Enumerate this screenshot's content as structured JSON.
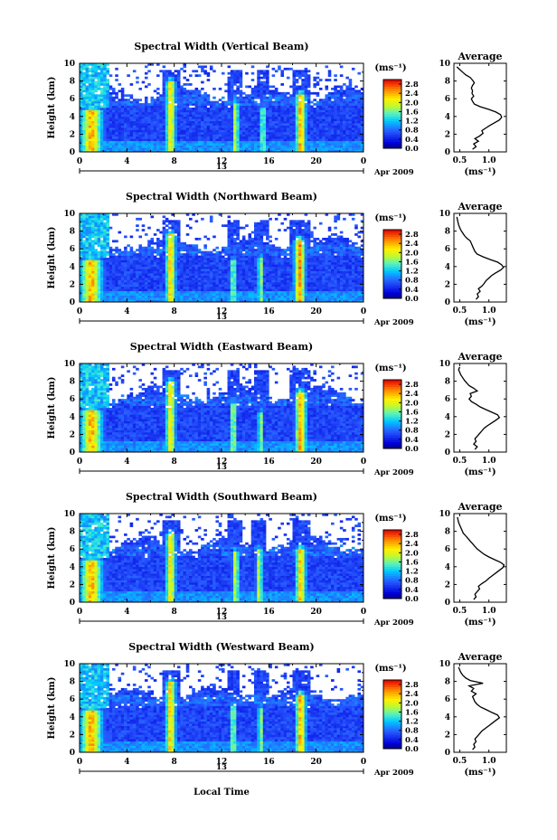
{
  "chart_data": {
    "type": "heatmap",
    "shared": {
      "xlabel": "Local Time",
      "ylabel": "Height (km)",
      "xticks": [
        "0",
        "4",
        "8",
        "12",
        "16",
        "20",
        "0"
      ],
      "xlim": [
        0,
        24
      ],
      "date_label": "13",
      "month_label": "Apr 2009",
      "yticks": [
        "0",
        "2",
        "4",
        "6",
        "8",
        "10"
      ],
      "ylim": [
        0,
        10
      ],
      "colorbar": {
        "unit_label": "(ms⁻¹)",
        "ticks": [
          "2.8",
          "2.4",
          "2.0",
          "1.6",
          "1.2",
          "0.8",
          "0.4",
          "0.0"
        ],
        "range": [
          0.0,
          3.0
        ]
      },
      "profile": {
        "title": "Average",
        "xlabel": "(ms⁻¹)"
      }
    },
    "panels": [
      {
        "title": "Spectral Width (Vertical Beam)",
        "profile_xticks": [
          "0.5",
          "1.0"
        ],
        "profile_xlim": [
          0.4,
          1.3
        ],
        "profile_heights": [
          0.3,
          0.6,
          0.9,
          1.2,
          1.5,
          1.8,
          2.1,
          2.4,
          2.7,
          3.0,
          3.3,
          3.6,
          3.9,
          4.2,
          4.5,
          4.8,
          5.1,
          5.4,
          5.7,
          6.0,
          6.3,
          6.6,
          6.9,
          7.2,
          7.5,
          7.8,
          8.1,
          8.4,
          8.7,
          9.0,
          9.3,
          9.6
        ],
        "profile_values": [
          0.72,
          0.78,
          0.74,
          0.82,
          0.76,
          0.84,
          0.9,
          0.88,
          0.95,
          1.02,
          1.1,
          1.18,
          1.22,
          1.2,
          1.12,
          1.0,
          0.85,
          0.75,
          0.72,
          0.7,
          0.74,
          0.71,
          0.72,
          0.7,
          0.72,
          0.75,
          0.72,
          0.68,
          0.6,
          0.55,
          0.5,
          0.45
        ],
        "bursts": [
          {
            "time": 1.0,
            "width": 2.2,
            "top": 4.8,
            "max": 2.8
          },
          {
            "time": 7.7,
            "width": 1.0,
            "top": 8.0,
            "max": 2.6
          },
          {
            "time": 13.2,
            "width": 0.6,
            "top": 5.4,
            "max": 2.5
          },
          {
            "time": 15.5,
            "width": 0.6,
            "top": 5.0,
            "max": 2.2
          },
          {
            "time": 18.7,
            "width": 1.0,
            "top": 6.5,
            "max": 2.9
          }
        ]
      },
      {
        "title": "Spectral Width (Northward Beam)",
        "profile_xticks": [
          "0.5",
          "1.0"
        ],
        "profile_xlim": [
          0.4,
          1.3
        ],
        "profile_heights": [
          0.3,
          0.6,
          0.9,
          1.2,
          1.5,
          1.8,
          2.1,
          2.4,
          2.7,
          3.0,
          3.3,
          3.6,
          3.9,
          4.2,
          4.5,
          4.8,
          5.1,
          5.4,
          5.7,
          6.0,
          6.3,
          6.6,
          6.9,
          7.2,
          7.5,
          7.8,
          8.1,
          8.4,
          8.7,
          9.0,
          9.3,
          9.6
        ],
        "profile_values": [
          0.78,
          0.82,
          0.8,
          0.85,
          0.82,
          0.88,
          0.92,
          0.95,
          1.0,
          1.05,
          1.12,
          1.2,
          1.25,
          1.22,
          1.15,
          1.02,
          0.9,
          0.8,
          0.76,
          0.74,
          0.72,
          0.7,
          0.68,
          0.62,
          0.58,
          0.55,
          0.52,
          0.5,
          0.48,
          0.47,
          0.46,
          0.45
        ],
        "bursts": [
          {
            "time": 1.0,
            "width": 2.2,
            "top": 4.7,
            "max": 2.8
          },
          {
            "time": 7.7,
            "width": 1.0,
            "top": 7.8,
            "max": 2.7
          },
          {
            "time": 13.0,
            "width": 0.6,
            "top": 4.8,
            "max": 2.3
          },
          {
            "time": 15.3,
            "width": 0.6,
            "top": 5.0,
            "max": 2.2
          },
          {
            "time": 18.6,
            "width": 1.1,
            "top": 7.0,
            "max": 2.9
          }
        ]
      },
      {
        "title": "Spectral Width (Eastward Beam)",
        "profile_xticks": [
          "0.5",
          "1.0"
        ],
        "profile_xlim": [
          0.4,
          1.3
        ],
        "profile_heights": [
          0.3,
          0.6,
          0.9,
          1.2,
          1.5,
          1.8,
          2.1,
          2.4,
          2.7,
          3.0,
          3.3,
          3.6,
          3.9,
          4.2,
          4.5,
          4.8,
          5.1,
          5.4,
          5.7,
          6.0,
          6.3,
          6.6,
          6.9,
          7.2,
          7.5,
          7.8,
          8.1,
          8.4,
          8.7,
          9.0,
          9.3,
          9.6
        ],
        "profile_values": [
          0.76,
          0.8,
          0.74,
          0.78,
          0.76,
          0.8,
          0.84,
          0.88,
          0.92,
          0.98,
          1.05,
          1.12,
          1.18,
          1.15,
          1.05,
          0.95,
          0.85,
          0.78,
          0.7,
          0.66,
          0.7,
          0.68,
          0.8,
          0.74,
          0.66,
          0.62,
          0.58,
          0.55,
          0.52,
          0.5,
          0.48,
          0.5
        ],
        "bursts": [
          {
            "time": 1.0,
            "width": 2.2,
            "top": 4.8,
            "max": 2.8
          },
          {
            "time": 7.7,
            "width": 1.0,
            "top": 8.0,
            "max": 2.6
          },
          {
            "time": 13.0,
            "width": 0.6,
            "top": 5.5,
            "max": 2.4
          },
          {
            "time": 15.3,
            "width": 0.6,
            "top": 4.6,
            "max": 2.2
          },
          {
            "time": 18.7,
            "width": 1.1,
            "top": 6.8,
            "max": 2.9
          }
        ]
      },
      {
        "title": "Spectral Width (Southward Beam)",
        "profile_xticks": [
          "0.5",
          "1.0"
        ],
        "profile_xlim": [
          0.4,
          1.3
        ],
        "profile_heights": [
          0.3,
          0.6,
          0.9,
          1.2,
          1.5,
          1.8,
          2.1,
          2.4,
          2.7,
          3.0,
          3.3,
          3.6,
          3.9,
          4.2,
          4.5,
          4.8,
          5.1,
          5.4,
          5.7,
          6.0,
          6.3,
          6.6,
          6.9,
          7.2,
          7.5,
          7.8,
          8.1,
          8.4,
          8.7,
          9.0,
          9.3,
          9.6
        ],
        "profile_values": [
          0.74,
          0.78,
          0.76,
          0.8,
          0.84,
          0.82,
          0.88,
          0.95,
          1.0,
          1.06,
          1.12,
          1.18,
          1.24,
          1.26,
          1.2,
          1.1,
          1.0,
          0.92,
          0.86,
          0.8,
          0.76,
          0.72,
          0.68,
          0.64,
          0.6,
          0.56,
          0.54,
          0.52,
          0.5,
          0.48,
          0.47,
          0.46
        ],
        "bursts": [
          {
            "time": 1.0,
            "width": 2.2,
            "top": 4.7,
            "max": 2.8
          },
          {
            "time": 7.7,
            "width": 1.0,
            "top": 7.8,
            "max": 2.6
          },
          {
            "time": 13.2,
            "width": 0.7,
            "top": 5.8,
            "max": 2.4
          },
          {
            "time": 15.2,
            "width": 0.7,
            "top": 6.0,
            "max": 2.3
          },
          {
            "time": 18.7,
            "width": 1.0,
            "top": 6.0,
            "max": 2.8
          }
        ]
      },
      {
        "title": "Spectral Width (Westward Beam)",
        "profile_xticks": [
          "0.5",
          "1.0"
        ],
        "profile_xlim": [
          0.4,
          1.3
        ],
        "profile_heights": [
          0.3,
          0.6,
          0.9,
          1.2,
          1.5,
          1.8,
          2.1,
          2.4,
          2.7,
          3.0,
          3.3,
          3.6,
          3.9,
          4.2,
          4.5,
          4.8,
          5.1,
          5.4,
          5.7,
          6.0,
          6.3,
          6.6,
          6.9,
          7.2,
          7.5,
          7.8,
          8.1,
          8.4,
          8.7,
          9.0,
          9.3,
          9.6
        ],
        "profile_values": [
          0.72,
          0.76,
          0.74,
          0.78,
          0.76,
          0.8,
          0.84,
          0.88,
          0.94,
          1.0,
          1.06,
          1.12,
          1.18,
          1.15,
          1.05,
          0.96,
          0.86,
          0.8,
          0.76,
          0.74,
          0.72,
          0.78,
          0.7,
          0.74,
          0.66,
          0.9,
          0.68,
          0.6,
          0.55,
          0.52,
          0.5,
          0.48
        ],
        "bursts": [
          {
            "time": 1.0,
            "width": 2.2,
            "top": 4.8,
            "max": 2.8
          },
          {
            "time": 7.7,
            "width": 1.0,
            "top": 8.0,
            "max": 2.7
          },
          {
            "time": 13.0,
            "width": 0.6,
            "top": 5.2,
            "max": 2.3
          },
          {
            "time": 15.3,
            "width": 0.6,
            "top": 5.0,
            "max": 2.2
          },
          {
            "time": 18.7,
            "width": 1.0,
            "top": 6.5,
            "max": 2.9
          }
        ]
      }
    ]
  }
}
